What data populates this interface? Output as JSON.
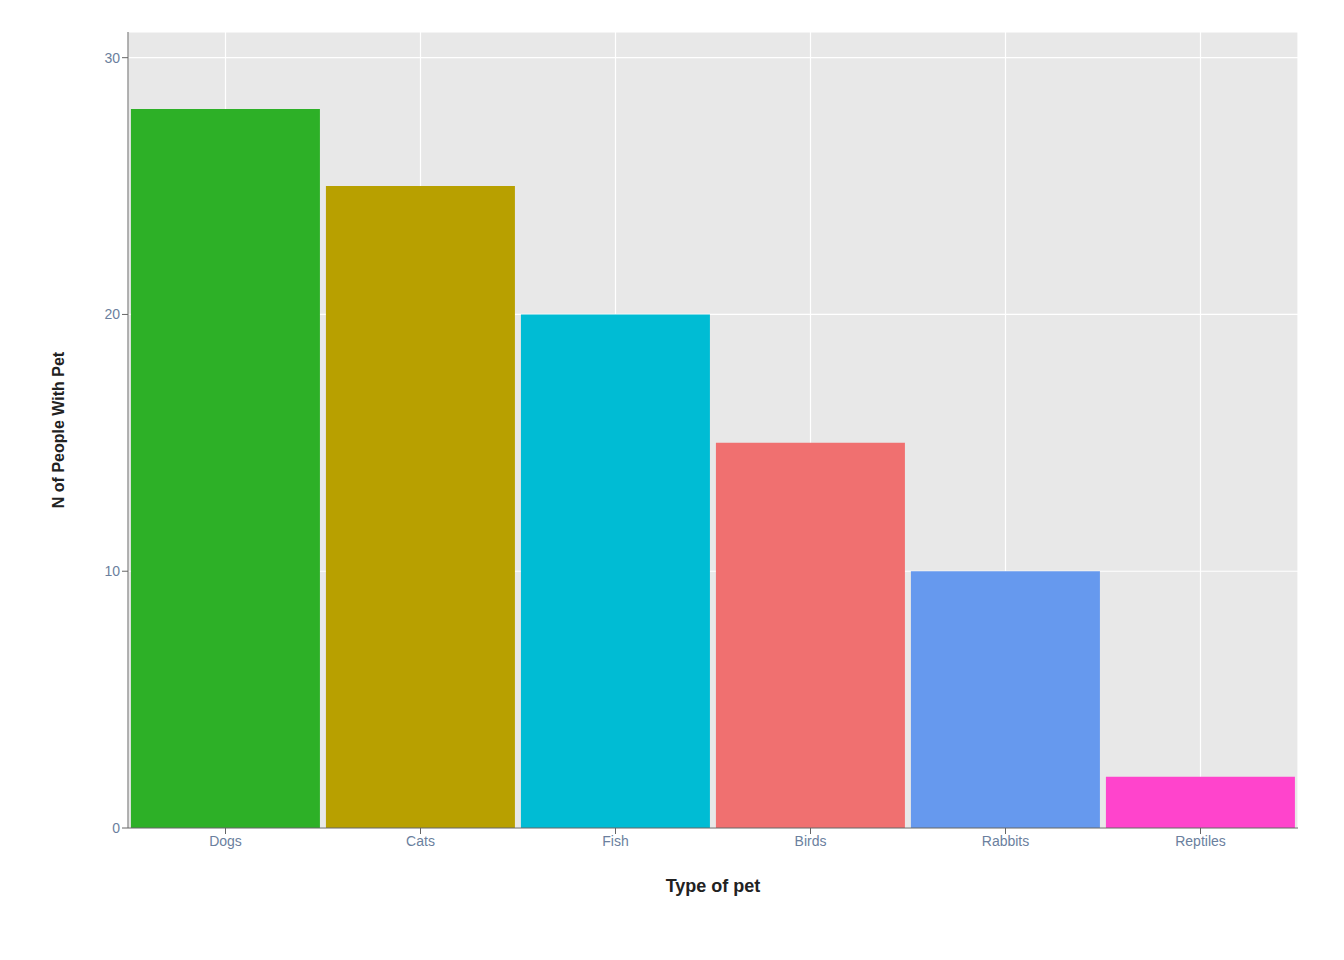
{
  "chart_data": {
    "type": "bar",
    "categories": [
      "Dogs",
      "Cats",
      "Fish",
      "Birds",
      "Rabbits",
      "Reptiles"
    ],
    "values": [
      28,
      25,
      20,
      15,
      10,
      2
    ],
    "colors": [
      "#2db027",
      "#b8a000",
      "#00bcd4",
      "#f07070",
      "#6699ee",
      "#ff44cc"
    ],
    "xlabel": "Type of pet",
    "ylabel": "N of People With Pet",
    "ylim": [
      0,
      31
    ],
    "yticks": [
      0,
      10,
      20,
      30
    ],
    "grid": true
  }
}
